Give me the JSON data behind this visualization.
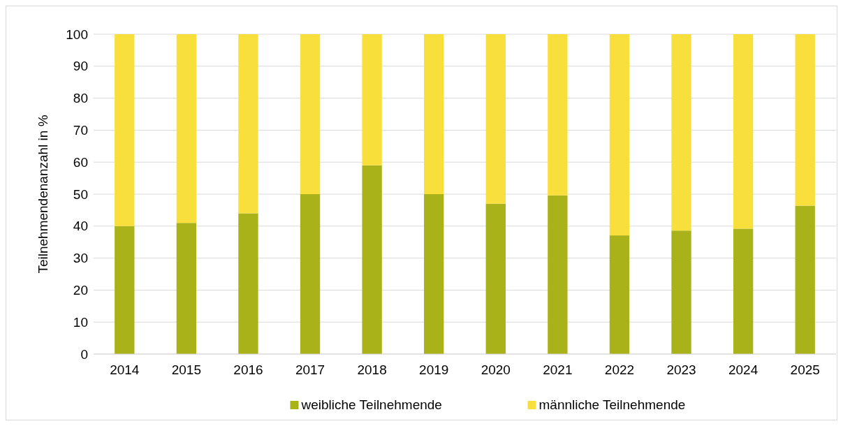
{
  "chart_data": {
    "type": "bar",
    "stacked": true,
    "ylabel": "Teilnehmendenanzahl in %",
    "categories": [
      "2014",
      "2015",
      "2016",
      "2017",
      "2018",
      "2019",
      "2020",
      "2021",
      "2022",
      "2023",
      "2024",
      "2025"
    ],
    "series": [
      {
        "name": "weibliche Teilnehmende",
        "color": "#aab21a",
        "values": [
          40,
          41,
          44,
          50,
          59,
          50,
          47,
          49.6,
          37.1,
          38.6,
          39.2,
          46.4
        ]
      },
      {
        "name": "männliche Teilnehmende",
        "color": "#f8df3c",
        "values": [
          60,
          59,
          56,
          50,
          41,
          50,
          53,
          50.4,
          62.9,
          61.4,
          60.8,
          53.6
        ]
      }
    ],
    "ylim": [
      0,
      100
    ],
    "yticks": [
      0,
      10,
      20,
      30,
      40,
      50,
      60,
      70,
      80,
      90,
      100
    ],
    "grid": "y",
    "legend": "bottom"
  }
}
